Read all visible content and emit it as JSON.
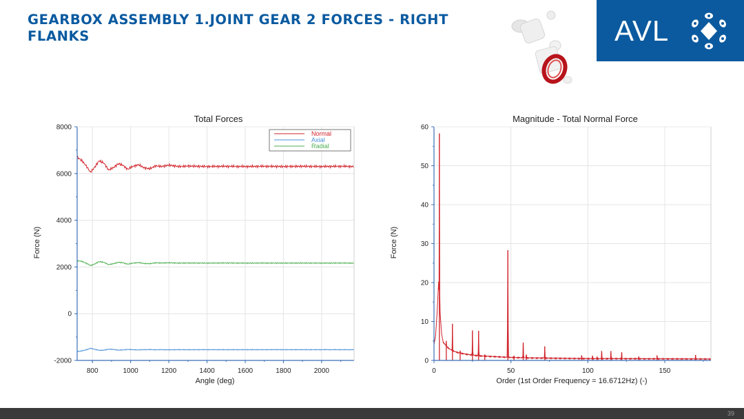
{
  "slide": {
    "title": "GEARBOX ASSEMBLY 1.JOINT GEAR 2 FORCES - RIGHT FLANKS",
    "logo_text": "AVL",
    "page_number": "39"
  },
  "colors": {
    "title": "#0a5aa0",
    "logo_bg": "#0b5a9f",
    "normal": "#d0232b",
    "axial": "#4a90d9",
    "radial": "#4caf50",
    "footer": "#3a3a3a"
  },
  "chart_data": [
    {
      "type": "line",
      "title": "Total Forces",
      "xlabel": "Angle (deg)",
      "ylabel": "Force (N)",
      "xlim": [
        720,
        2170
      ],
      "ylim": [
        -2000,
        8000
      ],
      "xticks": [
        800,
        1000,
        1200,
        1400,
        1600,
        1800,
        2000
      ],
      "yticks": [
        -2000,
        0,
        2000,
        4000,
        6000,
        8000
      ],
      "grid": true,
      "legend": "top-right",
      "series": [
        {
          "name": "Normal",
          "color": "#d0232b",
          "x": [
            720,
            745,
            770,
            790,
            810,
            835,
            860,
            885,
            910,
            935,
            960,
            985,
            1010,
            1040,
            1070,
            1100,
            1130,
            1160,
            1200,
            1250,
            1300,
            1400,
            1500,
            1600,
            1700,
            1800,
            1900,
            2000,
            2100,
            2170
          ],
          "y": [
            6700,
            6550,
            6300,
            6050,
            6250,
            6550,
            6450,
            6150,
            6250,
            6420,
            6350,
            6180,
            6300,
            6380,
            6250,
            6200,
            6330,
            6300,
            6360,
            6300,
            6320,
            6300,
            6310,
            6300,
            6310,
            6300,
            6310,
            6300,
            6310,
            6300
          ]
        },
        {
          "name": "Axial",
          "color": "#4a90d9",
          "x": [
            720,
            745,
            770,
            790,
            810,
            835,
            860,
            885,
            910,
            935,
            960,
            985,
            1010,
            1040,
            1070,
            1100,
            1130,
            1160,
            1200,
            1250,
            1300,
            1400,
            1500,
            1600,
            1700,
            1800,
            1900,
            2000,
            2100,
            2170
          ],
          "y": [
            -1620,
            -1590,
            -1540,
            -1480,
            -1520,
            -1570,
            -1560,
            -1520,
            -1530,
            -1560,
            -1550,
            -1530,
            -1540,
            -1550,
            -1540,
            -1535,
            -1545,
            -1540,
            -1545,
            -1540,
            -1542,
            -1540,
            -1542,
            -1540,
            -1541,
            -1540,
            -1541,
            -1540,
            -1541,
            -1540
          ]
        },
        {
          "name": "Radial",
          "color": "#4caf50",
          "x": [
            720,
            745,
            770,
            790,
            810,
            835,
            860,
            885,
            910,
            935,
            960,
            985,
            1010,
            1040,
            1070,
            1100,
            1130,
            1160,
            1200,
            1250,
            1300,
            1400,
            1500,
            1600,
            1700,
            1800,
            1900,
            2000,
            2100,
            2170
          ],
          "y": [
            2270,
            2240,
            2150,
            2060,
            2120,
            2230,
            2200,
            2100,
            2140,
            2200,
            2180,
            2120,
            2160,
            2190,
            2150,
            2140,
            2180,
            2170,
            2180,
            2165,
            2170,
            2165,
            2170,
            2165,
            2168,
            2165,
            2168,
            2165,
            2168,
            2165
          ]
        }
      ]
    },
    {
      "type": "line",
      "title": "Magnitude - Total Normal Force",
      "xlabel": "Order (1st Order Frequency = 16.6712Hz) (-)",
      "ylabel": "Force (N)",
      "xlim": [
        0,
        180
      ],
      "ylim": [
        0,
        60
      ],
      "xticks": [
        0,
        50,
        100,
        150
      ],
      "yticks": [
        0,
        10,
        20,
        30,
        40,
        50,
        60
      ],
      "grid": true,
      "baseline": {
        "x": [
          0,
          1,
          2,
          3,
          4,
          5,
          6,
          8,
          10,
          13,
          16,
          20,
          25,
          30,
          40,
          50,
          60,
          80,
          100,
          120,
          150,
          180
        ],
        "y": [
          4,
          6,
          12,
          20,
          12,
          6.5,
          4.5,
          3.5,
          2.8,
          2.2,
          1.8,
          1.5,
          1.2,
          1.0,
          0.8,
          0.6,
          0.5,
          0.4,
          0.3,
          0.3,
          0.25,
          0.2
        ]
      },
      "series": [
        {
          "name": "",
          "color": "#d0232b",
          "x": [
            3.5,
            8,
            12,
            17,
            25,
            29,
            33,
            48,
            52,
            58,
            60,
            72,
            96,
            103,
            106,
            109,
            115,
            122,
            133,
            145,
            170
          ],
          "y": [
            58.3,
            5,
            9.4,
            2.5,
            7.7,
            7.6,
            1.5,
            28.3,
            1.2,
            4.6,
            1.5,
            3.6,
            1.3,
            1.2,
            1.0,
            2.4,
            2.4,
            2.1,
            1.0,
            1.3,
            1.4
          ]
        }
      ]
    }
  ]
}
